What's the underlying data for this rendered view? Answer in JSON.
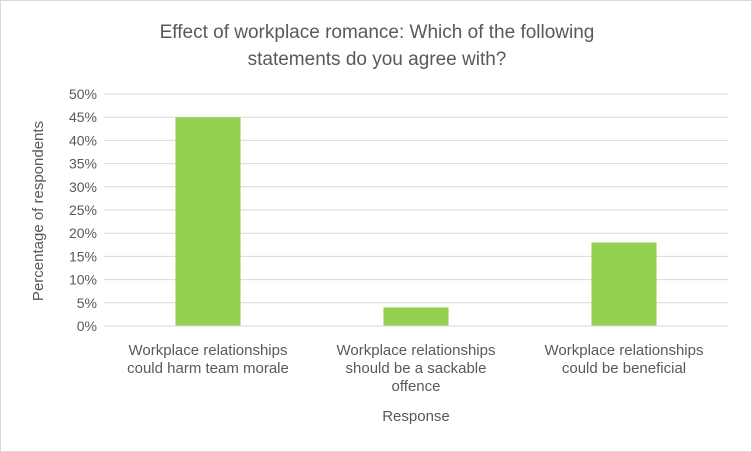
{
  "chart_data": {
    "type": "bar",
    "title_lines": [
      "Effect of workplace romance: Which of the following",
      "statements do you agree with?"
    ],
    "xlabel": "Response",
    "ylabel": "Percentage of respondents",
    "categories": [
      [
        "Workplace relationships",
        "could harm team morale"
      ],
      [
        "Workplace relationships",
        "should be a sackable",
        "offence"
      ],
      [
        "Workplace relationships",
        "could be beneficial"
      ]
    ],
    "values": [
      45,
      4,
      18
    ],
    "ylim": [
      0,
      50
    ],
    "ytick_step": 5,
    "ytick_suffix": "%",
    "grid": true,
    "legend": "none",
    "colors": {
      "bar": "#92d050",
      "grid": "#d9d9d9",
      "text": "#595959"
    }
  }
}
